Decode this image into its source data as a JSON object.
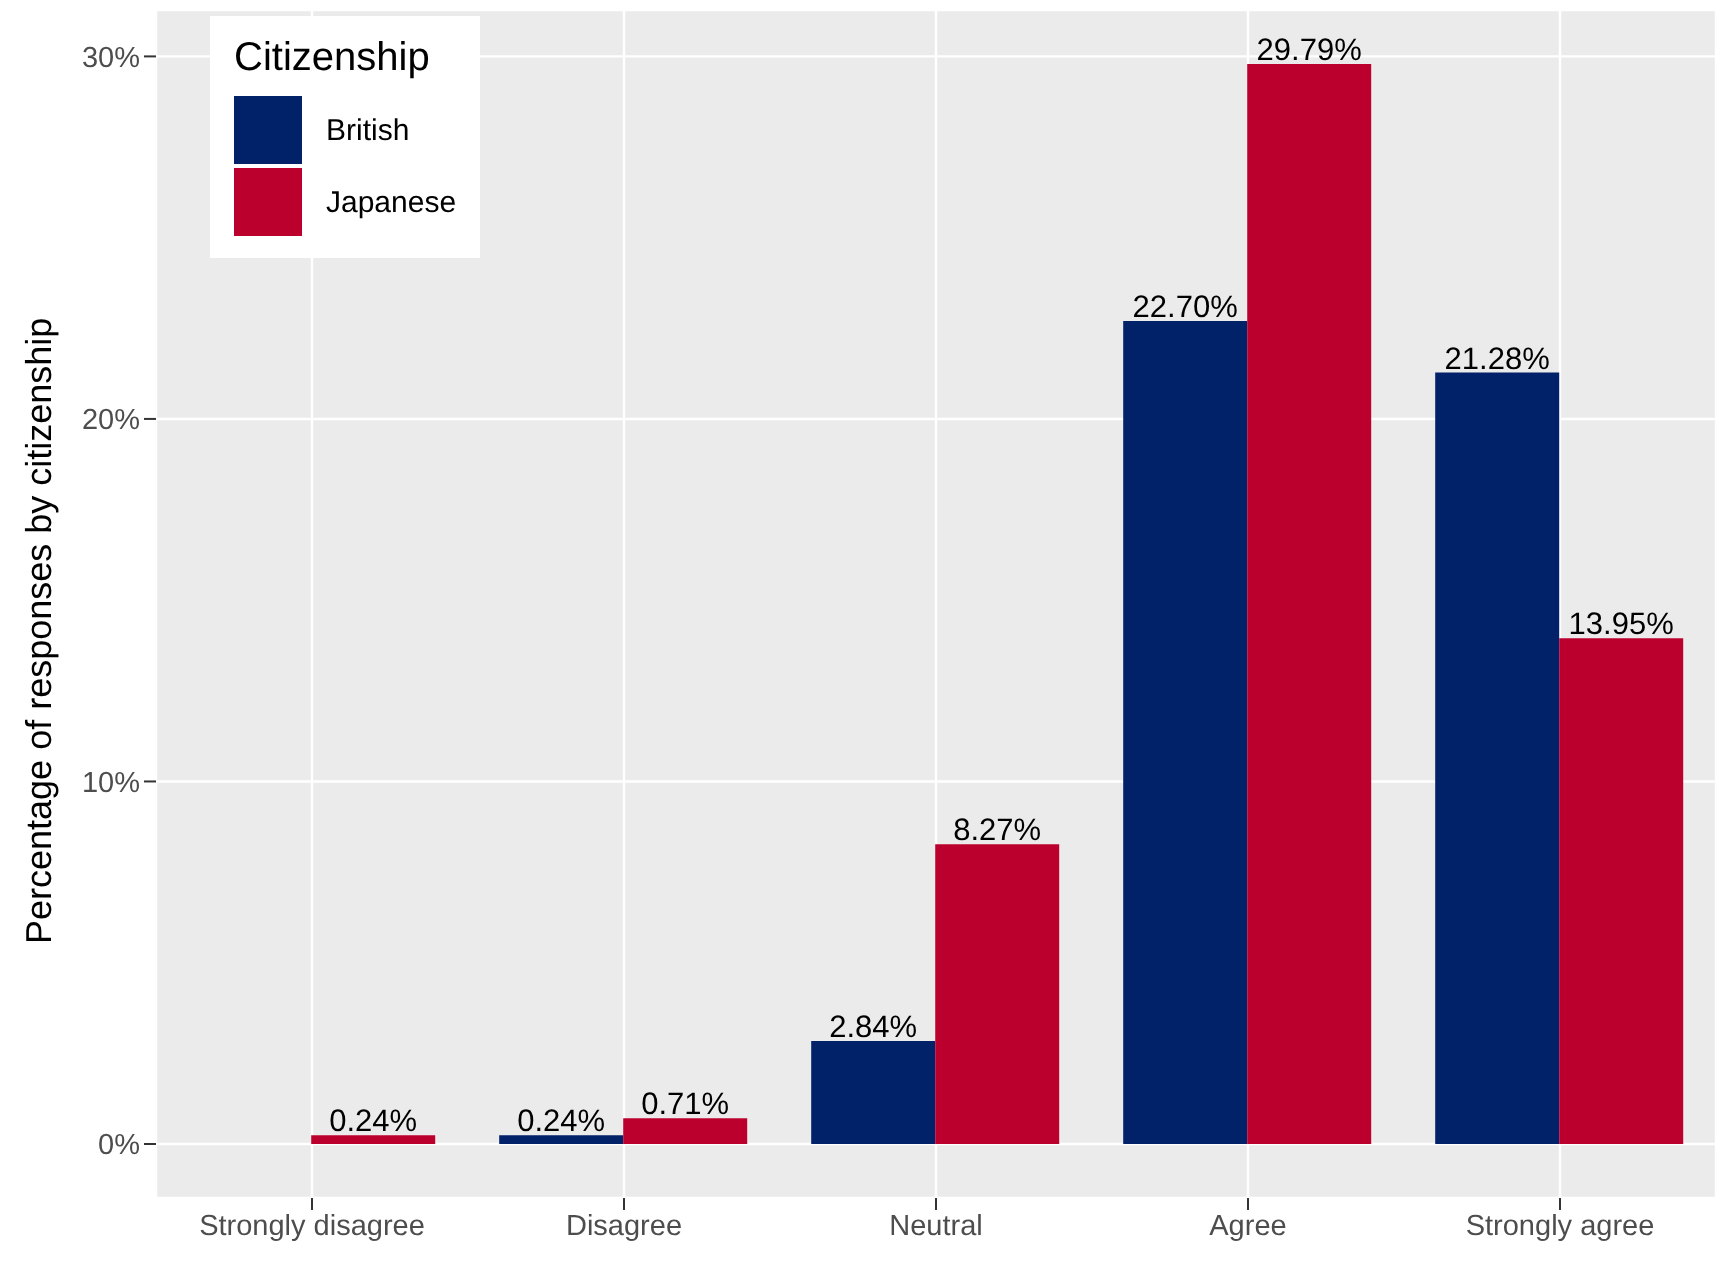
{
  "chart_data": {
    "type": "bar",
    "ylabel": "Percentage of responses by citizenship",
    "legend_title": "Citizenship",
    "legend": "top left",
    "grid": true,
    "categories": [
      "Strongly disagree",
      "Disagree",
      "Neutral",
      "Agree",
      "Strongly agree"
    ],
    "series": [
      {
        "name": "British",
        "color": "#012169",
        "values": [
          null,
          0.24,
          2.84,
          22.7,
          21.28
        ],
        "value_labels": [
          null,
          "0.24%",
          "2.84%",
          "22.70%",
          "21.28%"
        ]
      },
      {
        "name": "Japanese",
        "color": "#bc002d",
        "values": [
          0.24,
          0.71,
          8.27,
          29.79,
          13.95
        ],
        "value_labels": [
          "0.24%",
          "0.71%",
          "8.27%",
          "29.79%",
          "13.95%"
        ]
      }
    ],
    "ylim": [
      -1.49,
      31.28
    ],
    "yticks": [
      {
        "value": 0,
        "label": "0%"
      },
      {
        "value": 10,
        "label": "10%"
      },
      {
        "value": 20,
        "label": "20%"
      },
      {
        "value": 30,
        "label": "30%"
      }
    ]
  }
}
